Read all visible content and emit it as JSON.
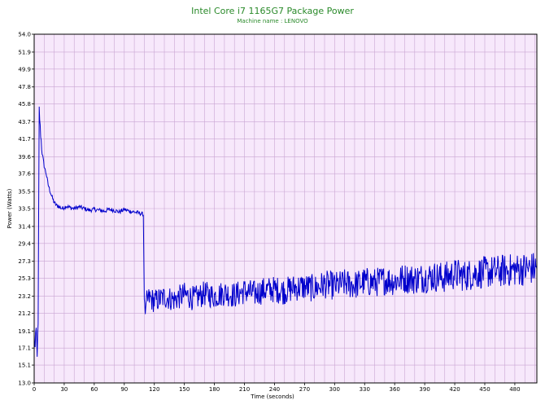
{
  "chart_data": {
    "type": "line",
    "title": "Intel Core i7 1165G7 Package Power",
    "subtitle": "Machine name : LENOVO",
    "xlabel": "Time (seconds)",
    "ylabel": "Power (Watts)",
    "xlim": [
      0,
      502
    ],
    "ylim": [
      13.0,
      54.0
    ],
    "x_ticks": [
      "0",
      "30",
      "60",
      "90",
      "120",
      "150",
      "180",
      "210",
      "240",
      "270",
      "300",
      "330",
      "360",
      "390",
      "420",
      "450",
      "480"
    ],
    "y_ticks": [
      "13.0",
      "15.1",
      "17.1",
      "19.1",
      "21.2",
      "23.2",
      "25.3",
      "27.3",
      "29.4",
      "31.4",
      "33.5",
      "35.5",
      "37.6",
      "39.6",
      "41.7",
      "43.7",
      "45.8",
      "47.8",
      "49.9",
      "51.9",
      "54.0"
    ],
    "grid": true,
    "colors": {
      "line": "#0000cc",
      "plot_bg": "#f7e8fb",
      "grid": "#c9a5d3",
      "title": "#2a8a2a"
    },
    "series": [
      {
        "name": "",
        "x": [
          0,
          1,
          2,
          3,
          4,
          5,
          6,
          7,
          8,
          10,
          12,
          14,
          16,
          18,
          20,
          22,
          25,
          28,
          32,
          36,
          40,
          45,
          50,
          55,
          60,
          65,
          70,
          75,
          80,
          85,
          90,
          95,
          100,
          104,
          107,
          109,
          110,
          111,
          112,
          115,
          120,
          130,
          140,
          150,
          160,
          170,
          180,
          190,
          200,
          210,
          220,
          230,
          240,
          250,
          260,
          270,
          280,
          290,
          300,
          310,
          320,
          330,
          340,
          350,
          360,
          370,
          380,
          390,
          400,
          410,
          420,
          430,
          440,
          450,
          460,
          470,
          480,
          490,
          500,
          502
        ],
        "y": [
          18.5,
          17.0,
          19.2,
          16.6,
          19.6,
          45.2,
          43.0,
          41.5,
          40.0,
          38.5,
          37.6,
          36.3,
          35.5,
          34.8,
          34.2,
          33.9,
          33.7,
          33.5,
          33.8,
          33.6,
          33.5,
          33.7,
          33.5,
          33.3,
          33.4,
          33.3,
          33.2,
          33.4,
          33.3,
          33.1,
          33.4,
          33.2,
          33.1,
          33.0,
          32.9,
          32.8,
          23.0,
          21.2,
          22.4,
          23.0,
          22.6,
          23.1,
          22.8,
          23.4,
          22.9,
          23.5,
          23.2,
          23.6,
          23.3,
          23.8,
          23.5,
          23.9,
          24.0,
          23.8,
          24.2,
          24.3,
          24.1,
          24.6,
          24.4,
          24.7,
          24.5,
          24.9,
          24.8,
          25.1,
          25.0,
          25.3,
          25.2,
          25.4,
          25.5,
          25.4,
          25.8,
          25.6,
          25.9,
          26.0,
          26.1,
          26.2,
          26.3,
          26.4,
          26.5,
          26.4
        ]
      }
    ]
  }
}
